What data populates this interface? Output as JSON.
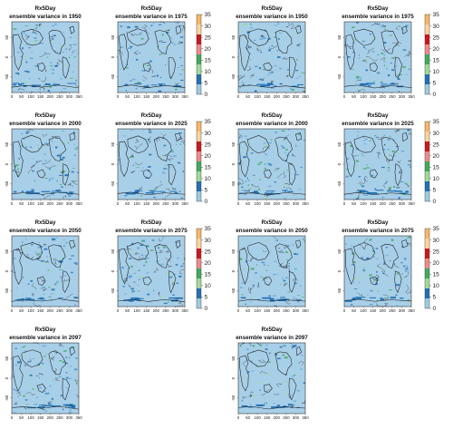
{
  "chart_data": [
    {
      "id": "L-1950",
      "variable": "Rx5Day",
      "subtitle": "ensemble variance in 1950",
      "type": "heatmap",
      "map_type": "global-map"
    },
    {
      "id": "L-1975",
      "variable": "Rx5Day",
      "subtitle": "ensemble variance in 1975",
      "type": "heatmap",
      "map_type": "global-map"
    },
    {
      "id": "L-2000",
      "variable": "Rx5Day",
      "subtitle": "ensemble variance in 2000",
      "type": "heatmap",
      "map_type": "global-map"
    },
    {
      "id": "L-2025",
      "variable": "Rx5Day",
      "subtitle": "ensemble variance in 2025",
      "type": "heatmap",
      "map_type": "global-map"
    },
    {
      "id": "L-2050",
      "variable": "Rx5Day",
      "subtitle": "ensemble variance in 2050",
      "type": "heatmap",
      "map_type": "global-map"
    },
    {
      "id": "L-2075",
      "variable": "Rx5Day",
      "subtitle": "ensemble variance in 2075",
      "type": "heatmap",
      "map_type": "global-map"
    },
    {
      "id": "L-2097",
      "variable": "Rx5Day",
      "subtitle": "ensemble variance in 2097",
      "type": "heatmap",
      "map_type": "global-map"
    },
    {
      "id": "R-1950",
      "variable": "Rx5Day",
      "subtitle": "ensemble variance in 1950",
      "type": "heatmap",
      "map_type": "global-map"
    },
    {
      "id": "R-1975",
      "variable": "Rx5Day",
      "subtitle": "ensemble variance in 1975",
      "type": "heatmap",
      "map_type": "global-map"
    },
    {
      "id": "R-2000",
      "variable": "Rx5Day",
      "subtitle": "ensemble variance in 2000",
      "type": "heatmap",
      "map_type": "global-map"
    },
    {
      "id": "R-2025",
      "variable": "Rx5Day",
      "subtitle": "ensemble variance in 2025",
      "type": "heatmap",
      "map_type": "global-map"
    },
    {
      "id": "R-2050",
      "variable": "Rx5Day",
      "subtitle": "ensemble variance in 2050",
      "type": "heatmap",
      "map_type": "global-map"
    },
    {
      "id": "R-2075",
      "variable": "Rx5Day",
      "subtitle": "ensemble variance in 2075",
      "type": "heatmap",
      "map_type": "global-map"
    },
    {
      "id": "R-2097",
      "variable": "Rx5Day",
      "subtitle": "ensemble variance in 2097",
      "type": "heatmap",
      "map_type": "global-map"
    }
  ],
  "shared_axes": {
    "x_ticks": [
      "0",
      "50",
      "100",
      "150",
      "200",
      "250",
      "300",
      "350"
    ],
    "y_ticks": [
      "50",
      "0",
      "-50"
    ]
  },
  "colorbar": {
    "ticks": [
      "35",
      "30",
      "25",
      "20",
      "15",
      "10",
      "5",
      "0"
    ],
    "colors": [
      "#9ecae1",
      "#2171b5",
      "#a1d99b",
      "#41ab5d",
      "#ef8a8a",
      "#cb181d",
      "#fdd49e",
      "#f7b867"
    ]
  }
}
